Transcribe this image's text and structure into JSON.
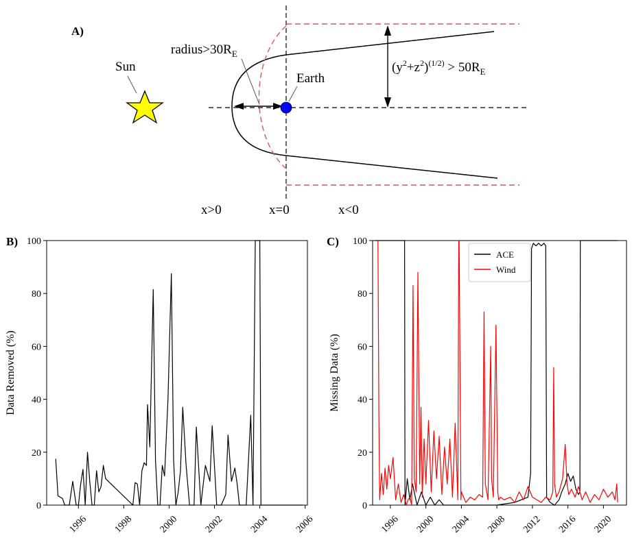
{
  "diagram": {
    "panel_label": "A)",
    "sun_label": "Sun",
    "earth_label": "Earth",
    "radius_label": "radius>30R",
    "radius_sub": "E",
    "yz_label_a": "(y",
    "yz_sup1": "2",
    "yz_label_b": "+z",
    "yz_sup2": "2",
    "yz_label_c": ")",
    "yz_sup3": "(1/2)",
    "yz_label_d": " > 50R",
    "yz_sub": "E",
    "x_pos_label": "x>0",
    "x_zero_label": "x=0",
    "x_neg_label": "x<0",
    "colors": {
      "sun": "#ffff00",
      "earth": "#0000ff",
      "boundary": "#cd5c5c",
      "line": "#000000"
    }
  },
  "chart_data": [
    {
      "panel_label": "B)",
      "type": "line",
      "xlabel": "",
      "ylabel": "Data Removed (%)",
      "xlim": [
        1994.6,
        2006.1
      ],
      "ylim": [
        0,
        100
      ],
      "x_ticks": [
        1996,
        1998,
        2000,
        2002,
        2004,
        2006
      ],
      "y_ticks": [
        0,
        20,
        40,
        60,
        80,
        100
      ],
      "series": [
        {
          "color": "#000000",
          "x": [
            1995.0,
            1995.1,
            1995.3,
            1995.4,
            1995.6,
            1995.75,
            1995.9,
            1996.0,
            1996.1,
            1996.2,
            1996.3,
            1996.4,
            1996.5,
            1996.6,
            1996.7,
            1996.8,
            1996.9,
            1997.0,
            1997.1,
            1997.2,
            1998.4,
            1998.5,
            1998.6,
            1998.7,
            1998.8,
            1998.9,
            1999.0,
            1999.05,
            1999.15,
            1999.3,
            1999.4,
            1999.5,
            1999.6,
            1999.7,
            1999.8,
            1999.95,
            2000.1,
            2000.2,
            2000.3,
            2000.4,
            2000.5,
            2000.6,
            2000.75,
            2000.9,
            2001.1,
            2001.2,
            2001.4,
            2001.6,
            2001.8,
            2001.9,
            2002.1,
            2002.3,
            2002.5,
            2002.6,
            2002.75,
            2002.9,
            2003.0,
            2003.1,
            2003.2,
            2003.4,
            2003.6,
            2003.7,
            2003.8,
            2003.9,
            2004.0,
            2004.05,
            2004.1,
            2005.9
          ],
          "values": [
            17.5,
            3.5,
            2.5,
            0,
            0,
            9,
            0,
            0,
            8,
            13.5,
            0,
            20,
            9,
            0,
            0,
            13,
            5,
            7,
            15,
            10,
            0,
            8.5,
            8,
            0,
            13,
            16,
            15,
            38,
            22,
            81.5,
            17,
            0,
            0,
            15,
            11,
            40,
            87.5,
            17,
            0,
            5,
            13,
            37,
            15,
            0,
            0,
            29.5,
            0,
            15,
            9,
            30,
            0,
            0,
            4,
            26.5,
            9,
            14,
            8,
            0,
            0,
            0,
            34,
            0,
            100,
            100,
            100,
            0,
            0,
            0
          ]
        }
      ]
    },
    {
      "panel_label": "C)",
      "type": "line",
      "xlabel": "",
      "ylabel": "Missing Data (%)",
      "xlim": [
        1994.0,
        2022.6
      ],
      "ylim": [
        0,
        100
      ],
      "x_ticks": [
        1996,
        2000,
        2004,
        2008,
        2012,
        2016,
        2020
      ],
      "y_ticks": [
        0,
        20,
        40,
        60,
        80,
        100
      ],
      "legend_position": "top-right",
      "series": [
        {
          "name": "ACE",
          "color": "#000000",
          "x": [
            1994.3,
            1997.6,
            1997.65,
            1997.9,
            1998.2,
            1998.5,
            1999.0,
            1999.5,
            2000.0,
            2000.5,
            2001.0,
            2001.5,
            2002.0,
            2004.0,
            2006.0,
            2008.0,
            2010.0,
            2011.5,
            2011.8,
            2011.9,
            2012.1,
            2012.4,
            2012.7,
            2013.0,
            2013.3,
            2013.5,
            2013.6,
            2014.0,
            2014.5,
            2015.0,
            2015.3,
            2015.7,
            2016.0,
            2016.3,
            2016.6,
            2016.9,
            2017.2,
            2017.35,
            2017.4,
            2021.6
          ],
          "values": [
            100,
            100,
            0,
            10,
            2,
            8,
            0,
            5,
            0,
            3,
            0,
            2,
            0,
            0,
            0,
            0,
            1,
            3,
            12,
            97,
            99,
            98,
            99,
            98,
            99,
            98,
            3,
            1,
            0,
            2,
            5,
            8,
            12,
            9,
            11,
            6,
            4,
            5,
            100,
            100
          ]
        },
        {
          "name": "Wind",
          "color": "#ff0000",
          "x": [
            1994.6,
            1994.7,
            1994.8,
            1995.0,
            1995.2,
            1995.4,
            1995.6,
            1995.8,
            1996.0,
            1996.3,
            1996.6,
            1996.9,
            1997.2,
            1997.5,
            1997.8,
            1998.0,
            1998.2,
            1998.4,
            1998.55,
            1998.7,
            1998.9,
            1999.1,
            1999.3,
            1999.45,
            1999.6,
            1999.8,
            2000.0,
            2000.3,
            2000.6,
            2000.9,
            2001.2,
            2001.5,
            2001.8,
            2002.1,
            2002.4,
            2002.7,
            2003.0,
            2003.3,
            2003.6,
            2003.7,
            2003.75,
            2003.95,
            2004.0,
            2004.5,
            2005.0,
            2005.5,
            2006.0,
            2006.4,
            2006.55,
            2006.7,
            2007.0,
            2007.3,
            2007.4,
            2007.6,
            2007.9,
            2008.1,
            2008.2,
            2008.4,
            2008.8,
            2009.5,
            2010.0,
            2010.5,
            2011.0,
            2011.5,
            2012.0,
            2012.5,
            2013.0,
            2013.5,
            2014.0,
            2014.3,
            2014.4,
            2014.5,
            2014.7,
            2015.0,
            2015.4,
            2015.7,
            2015.9,
            2016.1,
            2016.4,
            2016.8,
            2017.2,
            2017.6,
            2018.0,
            2018.5,
            2019.0,
            2019.5,
            2020.0,
            2020.5,
            2021.0,
            2021.3,
            2021.5,
            2021.6
          ],
          "values": [
            100,
            35,
            2,
            12,
            4,
            14,
            6,
            15,
            10,
            18,
            2,
            8,
            1,
            4,
            0,
            2,
            3,
            0,
            83,
            10,
            5,
            88,
            8,
            37,
            3,
            25,
            8,
            32,
            5,
            28,
            10,
            26,
            4,
            22,
            8,
            25,
            3,
            31,
            2,
            100,
            100,
            2,
            5,
            1,
            3,
            2,
            4,
            3,
            73,
            8,
            2,
            60,
            10,
            3,
            68,
            5,
            2,
            3,
            2,
            3,
            1,
            5,
            2,
            7,
            3,
            2,
            1,
            3,
            2,
            5,
            52,
            8,
            3,
            5,
            10,
            23,
            8,
            4,
            6,
            3,
            7,
            2,
            5,
            1,
            4,
            2,
            6,
            3,
            5,
            2,
            8,
            1
          ]
        }
      ]
    }
  ]
}
